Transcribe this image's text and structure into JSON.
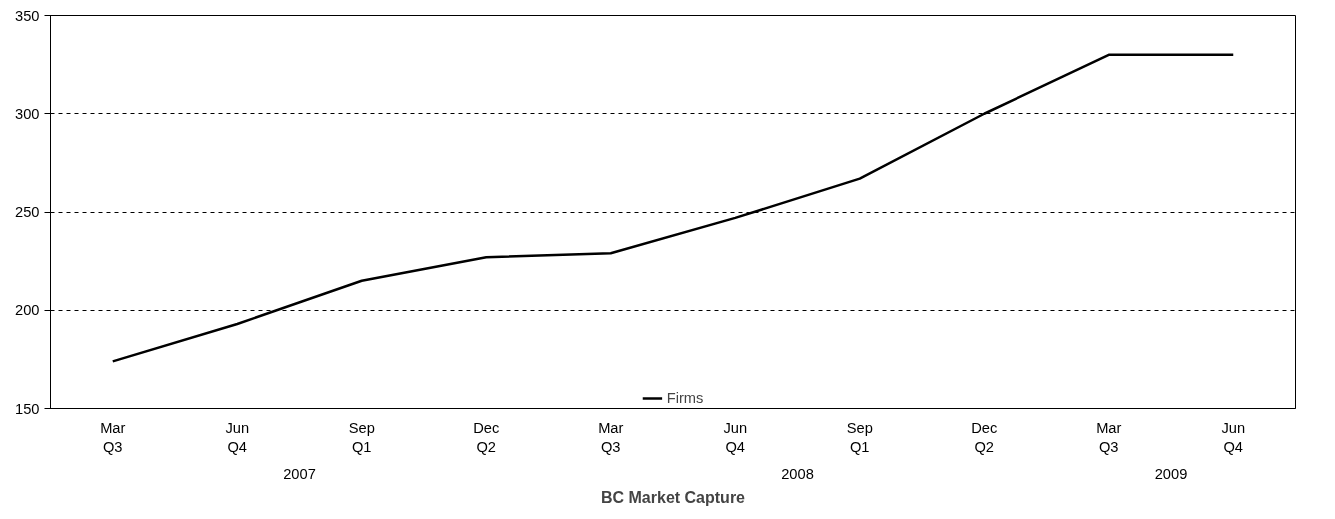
{
  "chart_data": {
    "type": "line",
    "title": "BC Market Capture",
    "categories": [
      "Mar\nQ3",
      "Jun\nQ4",
      "Sep\nQ1",
      "Dec\nQ2",
      "Mar\nQ3",
      "Jun\nQ4",
      "Sep\nQ1",
      "Dec\nQ2",
      "Mar\nQ3",
      "Jun\nQ4"
    ],
    "series": [
      {
        "name": "Firms",
        "color": "#000000",
        "values": [
          174,
          193,
          215,
          227,
          229,
          247,
          267,
          300,
          330,
          330
        ]
      }
    ],
    "annotations": [
      "2007",
      "2008",
      "2009"
    ],
    "ylim": [
      150,
      350
    ],
    "yticks": [
      150,
      200,
      250,
      300,
      350
    ],
    "grid": "y",
    "legend": "bottom",
    "line_style": "solid",
    "marker": "none"
  }
}
